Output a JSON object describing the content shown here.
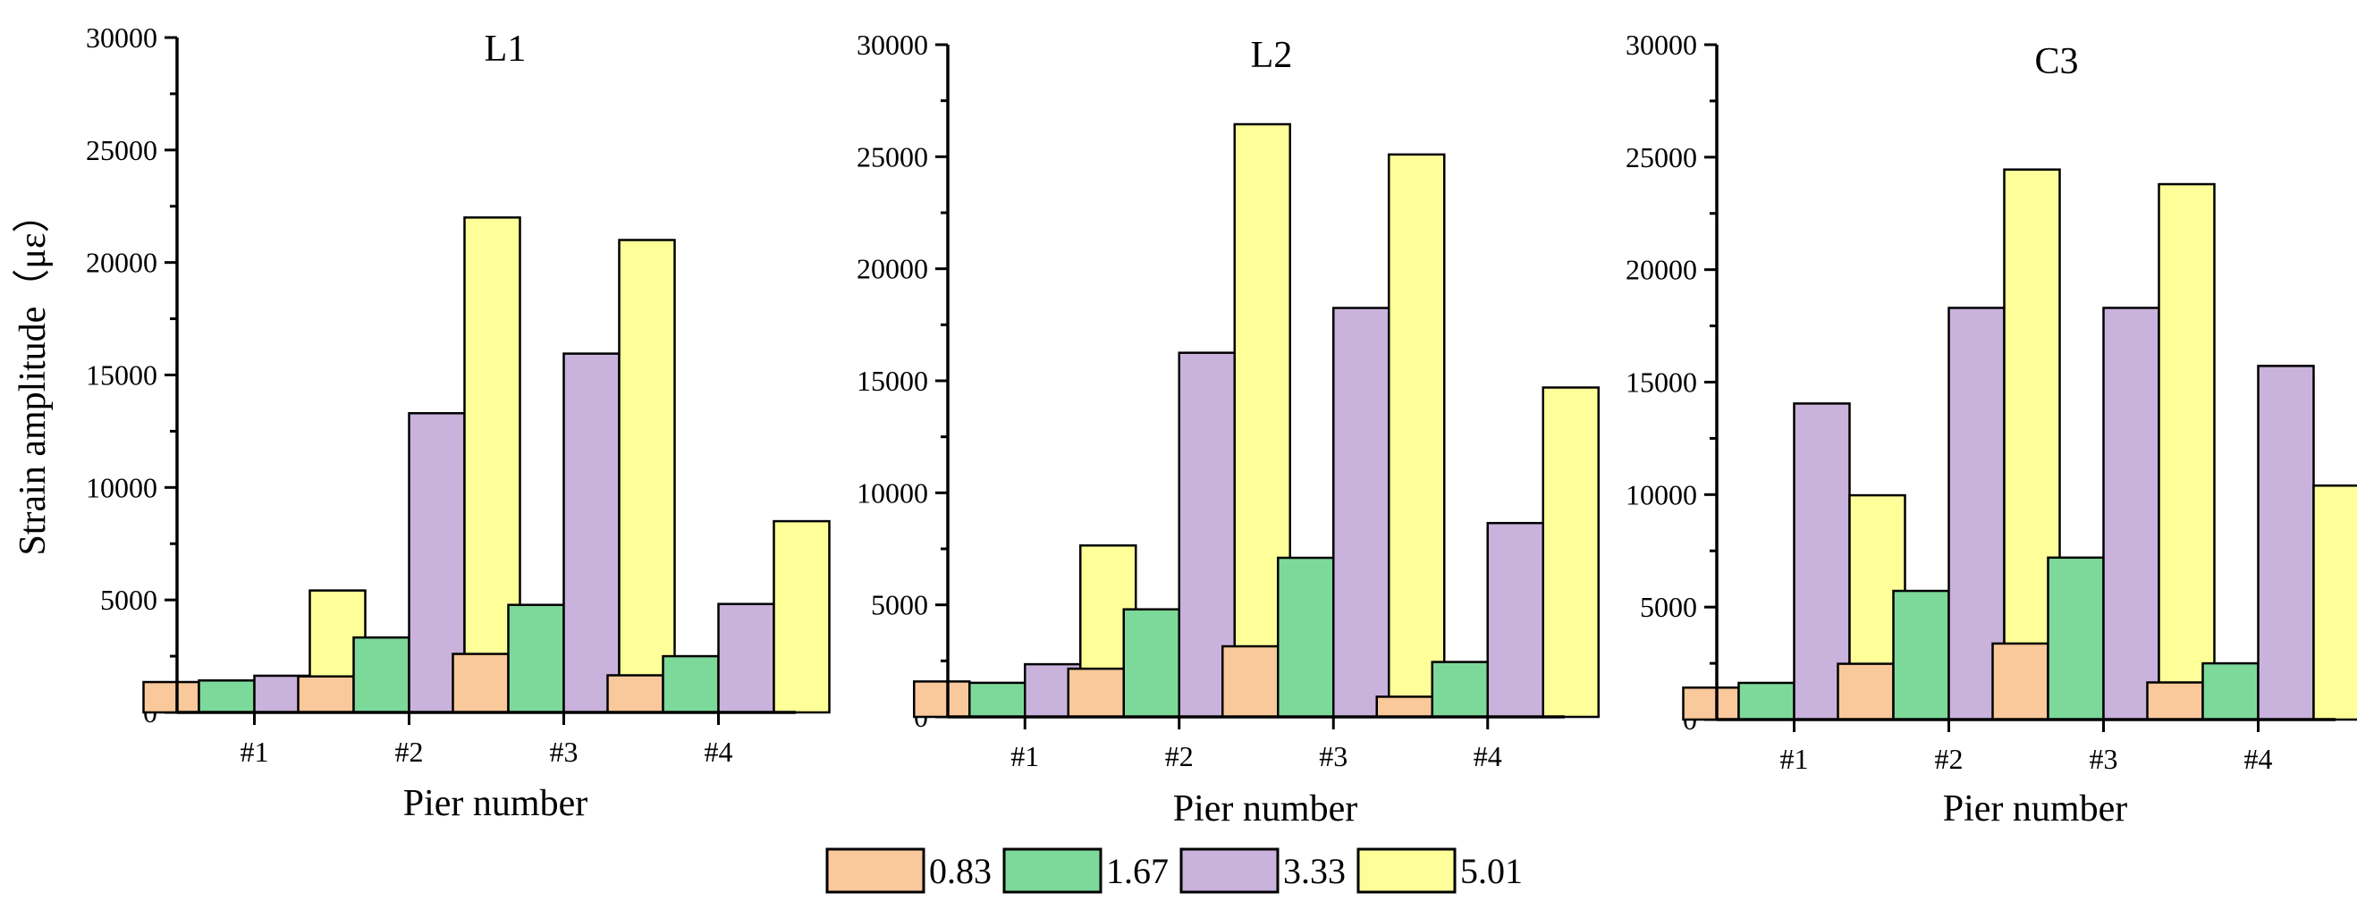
{
  "figure": {
    "ylabel": "Strain amplitude（με）",
    "xlabel": "Pier number",
    "legend": [
      "0.83",
      "1.67",
      "3.33",
      "5.01"
    ],
    "colors": [
      "#F9C89B",
      "#7DD99A",
      "#C9B2DB",
      "#FFFF99"
    ]
  },
  "chart_data": [
    {
      "type": "bar",
      "title": "L1",
      "xlabel": "Pier number",
      "ylabel": "Strain amplitude（με）",
      "categories": [
        "#1",
        "#2",
        "#3",
        "#4"
      ],
      "ylim": [
        0,
        30000
      ],
      "yticks": [
        "0",
        "5000",
        "10000",
        "15000",
        "20000",
        "25000",
        "30000"
      ],
      "series": [
        {
          "name": "0.83",
          "values": [
            1350,
            1600,
            2600,
            1650
          ]
        },
        {
          "name": "1.67",
          "values": [
            1420,
            3330,
            4780,
            2500
          ]
        },
        {
          "name": "3.33",
          "values": [
            1630,
            13300,
            15950,
            4820
          ]
        },
        {
          "name": "5.01",
          "values": [
            5420,
            22000,
            21000,
            8500
          ]
        }
      ]
    },
    {
      "type": "bar",
      "title": "L2",
      "xlabel": "Pier number",
      "ylabel": "",
      "categories": [
        "#1",
        "#2",
        "#3",
        "#4"
      ],
      "ylim": [
        0,
        30000
      ],
      "yticks": [
        "0",
        "5000",
        "10000",
        "15000",
        "20000",
        "25000",
        "30000"
      ],
      "series": [
        {
          "name": "0.83",
          "values": [
            1580,
            2150,
            3150,
            900
          ]
        },
        {
          "name": "1.67",
          "values": [
            1520,
            4800,
            7100,
            2450
          ]
        },
        {
          "name": "3.33",
          "values": [
            2350,
            16250,
            18250,
            8650
          ]
        },
        {
          "name": "5.01",
          "values": [
            7650,
            26450,
            25100,
            14700
          ]
        }
      ]
    },
    {
      "type": "bar",
      "title": "C3",
      "xlabel": "Pier number",
      "ylabel": "",
      "categories": [
        "#1",
        "#2",
        "#3",
        "#4"
      ],
      "ylim": [
        0,
        30000
      ],
      "yticks": [
        "0",
        "5000",
        "10000",
        "15000",
        "20000",
        "25000",
        "30000"
      ],
      "series": [
        {
          "name": "0.83",
          "values": [
            1420,
            2480,
            3380,
            1650
          ]
        },
        {
          "name": "1.67",
          "values": [
            1630,
            5720,
            7200,
            2500
          ]
        },
        {
          "name": "3.33",
          "values": [
            14050,
            18300,
            18300,
            15720
          ]
        },
        {
          "name": "5.01",
          "values": [
            9970,
            24450,
            23800,
            10400
          ]
        }
      ]
    }
  ]
}
